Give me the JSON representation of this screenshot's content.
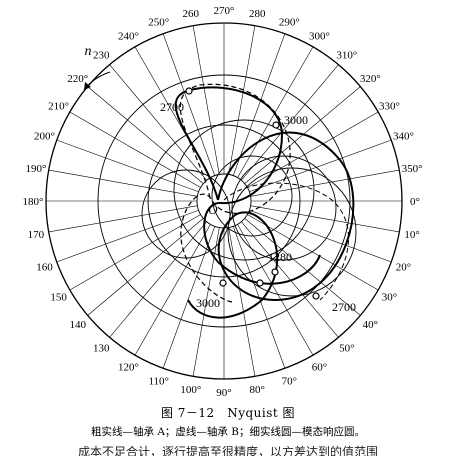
{
  "chart_data": {
    "type": "polar",
    "angular_labels_deg": [
      0,
      10,
      20,
      30,
      40,
      50,
      60,
      70,
      80,
      90,
      100,
      110,
      120,
      130,
      140,
      150,
      160,
      170,
      180,
      190,
      200,
      210,
      220,
      230,
      240,
      250,
      260,
      270,
      280,
      290,
      300,
      310,
      320,
      330,
      340,
      350
    ],
    "degree_symbol_labels": [
      0,
      10,
      20,
      30,
      40,
      50,
      60,
      70,
      80,
      90,
      100,
      110,
      120,
      180,
      190,
      200,
      210,
      220,
      240,
      250,
      270,
      290,
      300,
      310,
      320,
      330,
      340,
      350
    ],
    "rotation_label": "n",
    "origin_label": "O",
    "grid": true,
    "annotations": [
      {
        "text": "2700",
        "curve": "bearing_A"
      },
      {
        "text": "3000",
        "curve": "bearing_A"
      },
      {
        "text": "3000",
        "curve": "bearing_B"
      },
      {
        "text": "1280",
        "curve": "bearing_A"
      },
      {
        "text": "2700",
        "curve": "bearing_A"
      }
    ]
  },
  "caption": "图 7－12　Nyquist 图",
  "legend_text": "粗实线—轴承 A；虚线—轴承 B；细实线圆—模态响应圆。",
  "bottom_text": "成本不足合计，逐行提高至很精度，以方差达到的值范围"
}
